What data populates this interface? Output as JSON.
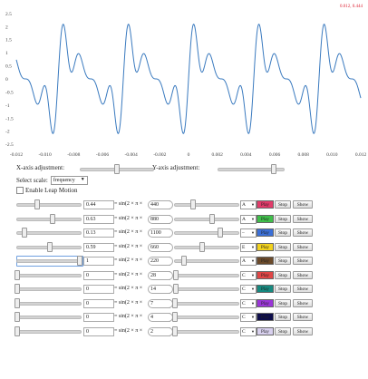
{
  "coord_readout": "0.012, 0.444",
  "chart_data": {
    "type": "line",
    "x_ticks": [
      "-0.012",
      "-0.010",
      "-0.008",
      "-0.006",
      "-0.004",
      "-0.002",
      "0",
      "0.002",
      "0.004",
      "0.006",
      "0.008",
      "0.010",
      "0.012"
    ],
    "y_ticks": [
      "2.5",
      "2",
      "1.5",
      "1",
      "0.5",
      "0",
      "-0.5",
      "-1",
      "-1.5",
      "-2",
      "-2.5"
    ],
    "xlim": [
      -0.012,
      0.012
    ],
    "ylim": [
      -2.6,
      2.6
    ],
    "grid": false,
    "series_color": "#3a7abf",
    "formula": "sum of 5 sines: 0.44 sin(2pi 440 x) + 0.63 sin(2pi 880 x) + 0.13 sin(2pi 1100 x) + 0.59 sin(2pi 660 x) + 1 sin(2pi 220 x)"
  },
  "controls": {
    "x_axis_label": "X-axis adjustment:",
    "y_axis_label": "Y-axis adjustment:",
    "x_axis_slider_value": 0.5,
    "y_axis_slider_value": 0.85,
    "scale_label": "Select scale:",
    "scale_value": "frequency",
    "leap_label": "Enable Leap Motion",
    "leap_checked": false
  },
  "buttons": {
    "stop": "Stop",
    "show": "Show"
  },
  "rows": [
    {
      "amp": "0.44",
      "freq": "440",
      "note": "A",
      "play_label": "Play",
      "color": "#e23b6a",
      "amp_slider": 0.32,
      "freq_slider": 0.28
    },
    {
      "amp": "0.63",
      "freq": "880",
      "note": "A",
      "play_label": "Play",
      "color": "#3fbf4a",
      "amp_slider": 0.55,
      "freq_slider": 0.58
    },
    {
      "amp": "0.13",
      "freq": "1100",
      "note": "–",
      "play_label": "Play",
      "color": "#3a6fd8",
      "amp_slider": 0.12,
      "freq_slider": 0.72
    },
    {
      "amp": "0.59",
      "freq": "660",
      "note": "E",
      "play_label": "Play",
      "color": "#f2d21e",
      "amp_slider": 0.52,
      "freq_slider": 0.43
    },
    {
      "amp": "1",
      "freq": "220",
      "note": "A",
      "play_label": "Play",
      "color": "#6b4a2a",
      "amp_slider": 0.98,
      "freq_slider": 0.14
    },
    {
      "amp": "0",
      "freq": "28",
      "note": "C",
      "play_label": "Play",
      "color": "#e04545",
      "amp_slider": 0.0,
      "freq_slider": 0.02
    },
    {
      "amp": "0",
      "freq": "14",
      "note": "C",
      "play_label": "Play",
      "color": "#168a80",
      "amp_slider": 0.0,
      "freq_slider": 0.01
    },
    {
      "amp": "0",
      "freq": "7",
      "note": "C",
      "play_label": "Play",
      "color": "#9a35d8",
      "amp_slider": 0.0,
      "freq_slider": 0.005
    },
    {
      "amp": "0",
      "freq": "4",
      "note": "C",
      "play_label": "Play",
      "color": "#0d0d4a",
      "amp_slider": 0.0,
      "freq_slider": 0.002
    },
    {
      "amp": "0",
      "freq": "2",
      "note": "C",
      "play_label": "Play",
      "color": "#d8d0ee",
      "amp_slider": 0.0,
      "freq_slider": 0.001
    }
  ],
  "formula_parts": {
    "eq": "= sin(2 × π ×"
  }
}
